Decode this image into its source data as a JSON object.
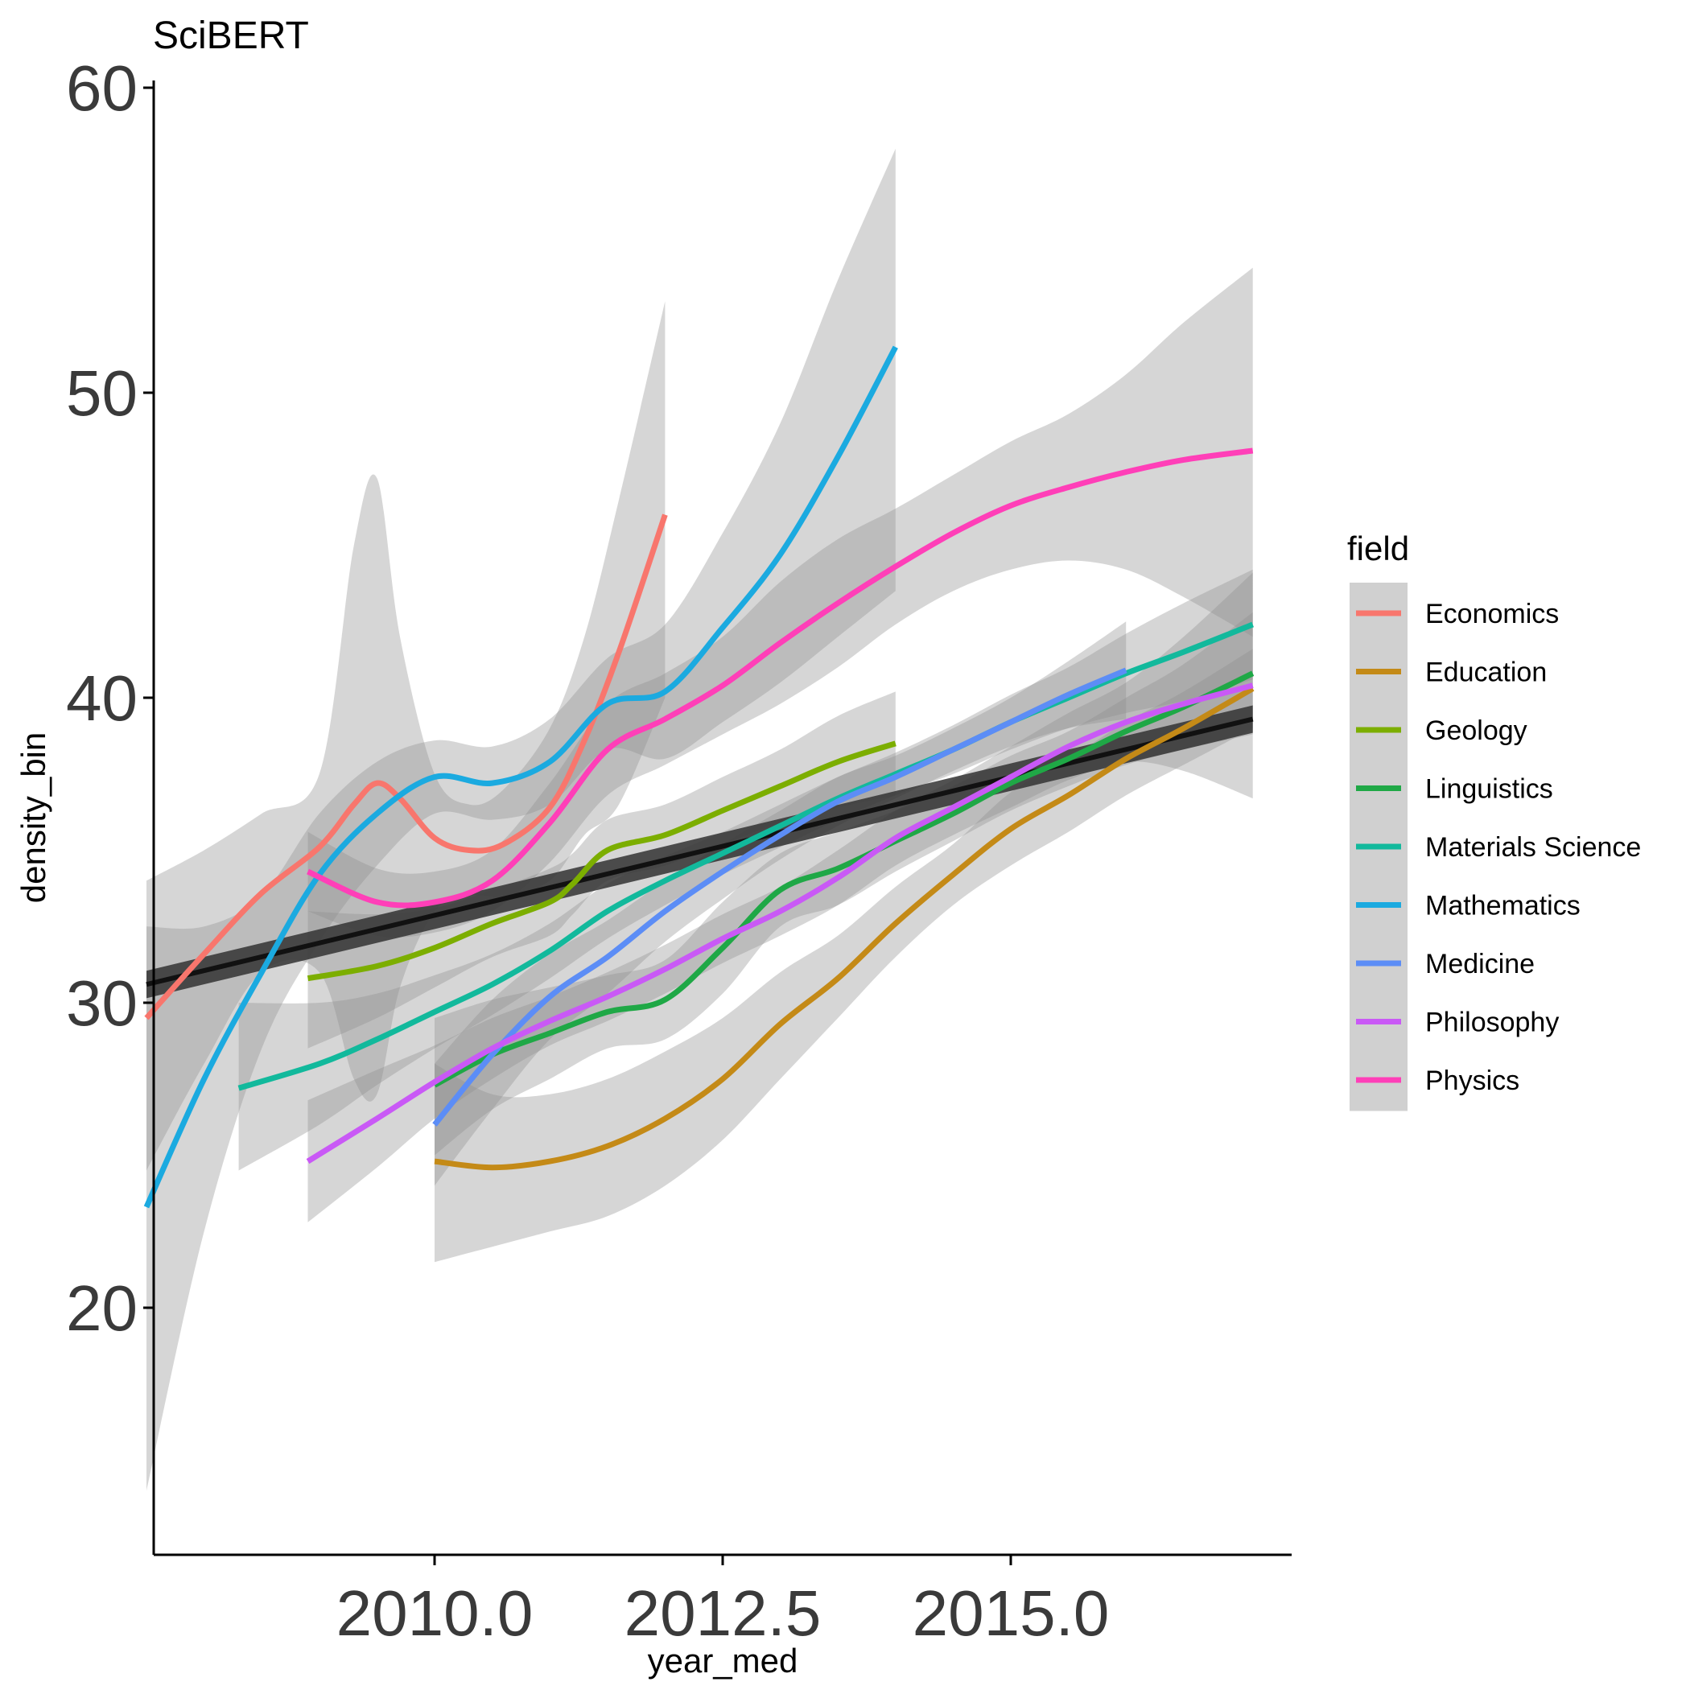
{
  "chart_data": {
    "type": "line",
    "title": "SciBERT",
    "xlabel": "year_med",
    "ylabel": "density_bin",
    "xlim": [
      2007.3,
      2017.5
    ],
    "ylim": [
      13,
      61.5
    ],
    "x_ticks": [
      {
        "value": 2010,
        "label": "2010.0"
      },
      {
        "value": 2012.5,
        "label": "2012.5"
      },
      {
        "value": 2015,
        "label": "2015.0"
      }
    ],
    "y_ticks": [
      {
        "value": 20,
        "label": "20"
      },
      {
        "value": 30,
        "label": "30"
      },
      {
        "value": 40,
        "label": "40"
      },
      {
        "value": 50,
        "label": "50"
      },
      {
        "value": 60,
        "label": "60"
      }
    ],
    "grid": false,
    "legend": {
      "title": "field",
      "placement": "right"
    },
    "overall_trend": {
      "color": "#333333",
      "x": [
        2007.5,
        2017.1
      ],
      "y": [
        30.6,
        39.3
      ],
      "band_halfwidth": 0.45
    },
    "series": [
      {
        "name": "Economics",
        "color": "#F8766D",
        "x": [
          2007.5,
          2008,
          2008.5,
          2009,
          2009.3,
          2009.5,
          2009.7,
          2010,
          2010.3,
          2010.6,
          2011,
          2011.3,
          2011.6,
          2012
        ],
        "y": [
          29.5,
          31.6,
          33.6,
          35.1,
          36.5,
          37.2,
          36.7,
          35.4,
          35.0,
          35.2,
          36.4,
          38.6,
          41.5,
          46.0
        ],
        "lower": [
          24.5,
          28.0,
          31.0,
          31.0,
          27.5,
          27.0,
          30.5,
          33.0,
          33.5,
          33.5,
          34.0,
          35.5,
          36.5,
          40.0
        ],
        "upper": [
          34.0,
          35.0,
          36.2,
          37.5,
          45.0,
          47.2,
          42.0,
          37.5,
          36.5,
          37.0,
          39.0,
          42.0,
          46.5,
          53.0
        ]
      },
      {
        "name": "Education",
        "color": "#C48A17",
        "x": [
          2010,
          2010.5,
          2011,
          2011.5,
          2012,
          2012.5,
          2013,
          2013.5,
          2014,
          2014.5,
          2015,
          2015.5,
          2016,
          2016.5,
          2017.1
        ],
        "y": [
          24.8,
          24.6,
          24.8,
          25.3,
          26.2,
          27.5,
          29.3,
          30.8,
          32.6,
          34.2,
          35.7,
          36.8,
          38.0,
          39.0,
          40.3
        ],
        "lower": [
          21.5,
          22.0,
          22.5,
          23.0,
          24.0,
          25.5,
          27.5,
          29.5,
          31.5,
          33.2,
          34.5,
          35.6,
          36.8,
          37.8,
          39.0
        ],
        "upper": [
          28.0,
          27.0,
          27.0,
          27.5,
          28.4,
          29.5,
          31.0,
          32.2,
          33.8,
          35.2,
          36.9,
          38.0,
          39.2,
          40.2,
          41.6
        ]
      },
      {
        "name": "Geology",
        "color": "#7CAE00",
        "x": [
          2008.9,
          2009.5,
          2010,
          2010.5,
          2011,
          2011.2,
          2011.5,
          2012,
          2012.5,
          2013,
          2013.5,
          2014
        ],
        "y": [
          30.8,
          31.2,
          31.8,
          32.6,
          33.3,
          33.9,
          35.0,
          35.5,
          36.3,
          37.1,
          37.9,
          38.5
        ],
        "lower": [
          28.5,
          29.5,
          30.5,
          31.5,
          32.2,
          32.9,
          34.0,
          34.5,
          35.2,
          35.9,
          36.4,
          36.8
        ],
        "upper": [
          33.0,
          32.9,
          33.1,
          33.7,
          34.4,
          34.9,
          36.0,
          36.5,
          37.4,
          38.3,
          39.4,
          40.2
        ]
      },
      {
        "name": "Linguistics",
        "color": "#1FA846",
        "x": [
          2010,
          2010.5,
          2011,
          2011.5,
          2012,
          2012.5,
          2013,
          2013.5,
          2014,
          2014.5,
          2015,
          2015.5,
          2016,
          2016.5,
          2017.1
        ],
        "y": [
          27.3,
          28.3,
          29.0,
          29.7,
          30.1,
          31.8,
          33.7,
          34.4,
          35.3,
          36.2,
          37.2,
          38.0,
          38.9,
          39.7,
          40.8
        ],
        "lower": [
          25.0,
          26.5,
          27.5,
          28.5,
          28.8,
          30.3,
          32.5,
          33.2,
          34.3,
          35.3,
          36.3,
          37.1,
          37.8,
          38.3,
          38.8
        ],
        "upper": [
          29.5,
          30.1,
          30.5,
          30.9,
          31.4,
          33.3,
          34.9,
          35.6,
          36.3,
          37.1,
          38.1,
          38.9,
          40.0,
          41.1,
          42.8
        ]
      },
      {
        "name": "Materials Science",
        "color": "#12B99C",
        "x": [
          2008.3,
          2009,
          2009.5,
          2010,
          2010.5,
          2011,
          2011.5,
          2012,
          2012.5,
          2013,
          2013.5,
          2014,
          2014.5,
          2015,
          2015.5,
          2016,
          2016.5,
          2017.1
        ],
        "y": [
          27.2,
          28.0,
          28.8,
          29.7,
          30.6,
          31.7,
          33.0,
          34.0,
          34.9,
          35.8,
          36.7,
          37.5,
          38.3,
          39.2,
          40.0,
          40.8,
          41.5,
          42.4
        ],
        "lower": [
          24.5,
          26.0,
          27.3,
          28.5,
          29.6,
          30.8,
          32.1,
          33.2,
          34.2,
          35.1,
          36.0,
          36.8,
          37.5,
          38.3,
          39.0,
          39.5,
          39.9,
          40.6
        ],
        "upper": [
          30.0,
          30.0,
          30.3,
          30.9,
          31.6,
          32.6,
          33.9,
          34.8,
          35.6,
          36.5,
          37.4,
          38.2,
          39.1,
          40.1,
          41.0,
          42.1,
          43.1,
          44.2
        ]
      },
      {
        "name": "Mathematics",
        "color": "#1BAAE0",
        "x": [
          2007.5,
          2008,
          2008.5,
          2009,
          2009.5,
          2010,
          2010.5,
          2011,
          2011.5,
          2012,
          2012.5,
          2013,
          2013.5,
          2014
        ],
        "y": [
          23.3,
          27.5,
          31.0,
          34.2,
          36.2,
          37.4,
          37.2,
          37.9,
          39.8,
          40.2,
          42.3,
          44.7,
          47.9,
          51.5
        ],
        "lower": [
          14.0,
          22.5,
          28.5,
          32.0,
          34.5,
          36.2,
          36.0,
          36.5,
          38.3,
          38.0,
          39.2,
          40.5,
          42.0,
          43.5
        ],
        "upper": [
          32.5,
          32.5,
          33.5,
          36.2,
          37.9,
          38.6,
          38.4,
          39.3,
          41.3,
          42.4,
          45.4,
          49.0,
          53.7,
          58.0
        ]
      },
      {
        "name": "Medicine",
        "color": "#5C8DF6",
        "x": [
          2010,
          2010.5,
          2011,
          2011.5,
          2012,
          2012.5,
          2013,
          2013.5,
          2014,
          2014.5,
          2015,
          2015.5,
          2016
        ],
        "y": [
          26.0,
          28.3,
          30.2,
          31.5,
          33.0,
          34.3,
          35.5,
          36.6,
          37.4,
          38.3,
          39.2,
          40.1,
          40.9
        ],
        "lower": [
          24.0,
          26.5,
          28.8,
          30.3,
          32.0,
          33.4,
          34.7,
          35.8,
          36.7,
          37.6,
          38.4,
          39.0,
          39.3
        ],
        "upper": [
          28.0,
          30.1,
          31.6,
          32.7,
          34.0,
          35.2,
          36.3,
          37.4,
          38.1,
          39.0,
          40.0,
          41.2,
          42.5
        ]
      },
      {
        "name": "Philosophy",
        "color": "#C959F6",
        "x": [
          2008.9,
          2009.5,
          2010,
          2010.5,
          2011,
          2011.5,
          2012,
          2012.5,
          2013,
          2013.5,
          2014,
          2014.5,
          2015,
          2015.5,
          2016,
          2016.5,
          2017.1
        ],
        "y": [
          24.8,
          26.2,
          27.4,
          28.5,
          29.4,
          30.2,
          31.1,
          32.1,
          33.0,
          34.1,
          35.4,
          36.4,
          37.4,
          38.4,
          39.2,
          39.8,
          40.4
        ],
        "lower": [
          22.8,
          24.6,
          26.2,
          27.5,
          28.6,
          29.4,
          30.3,
          31.3,
          32.2,
          33.2,
          34.5,
          35.5,
          36.4,
          37.3,
          37.9,
          37.6,
          36.7
        ],
        "upper": [
          26.8,
          27.8,
          28.6,
          29.5,
          30.2,
          31.0,
          31.9,
          32.9,
          33.8,
          35.0,
          36.3,
          37.3,
          38.4,
          39.5,
          40.5,
          42.0,
          44.1
        ]
      },
      {
        "name": "Physics",
        "color": "#FF3FB8",
        "x": [
          2008.9,
          2009.5,
          2010,
          2010.5,
          2011,
          2011.5,
          2012,
          2012.5,
          2013,
          2013.5,
          2014,
          2014.5,
          2015,
          2015.5,
          2016,
          2016.5,
          2017.1
        ],
        "y": [
          34.3,
          33.3,
          33.3,
          34.0,
          35.9,
          38.3,
          39.3,
          40.4,
          41.8,
          43.1,
          44.3,
          45.4,
          46.3,
          46.9,
          47.4,
          47.8,
          48.1
        ],
        "lower": [
          33.0,
          32.2,
          32.3,
          33.0,
          34.6,
          36.8,
          37.8,
          38.8,
          39.8,
          41.0,
          42.4,
          43.5,
          44.2,
          44.5,
          44.2,
          43.3,
          42.0
        ],
        "upper": [
          35.6,
          34.4,
          34.3,
          35.0,
          37.2,
          39.8,
          40.8,
          42.0,
          43.8,
          45.2,
          46.2,
          47.3,
          48.4,
          49.3,
          50.6,
          52.3,
          54.1
        ]
      }
    ]
  }
}
